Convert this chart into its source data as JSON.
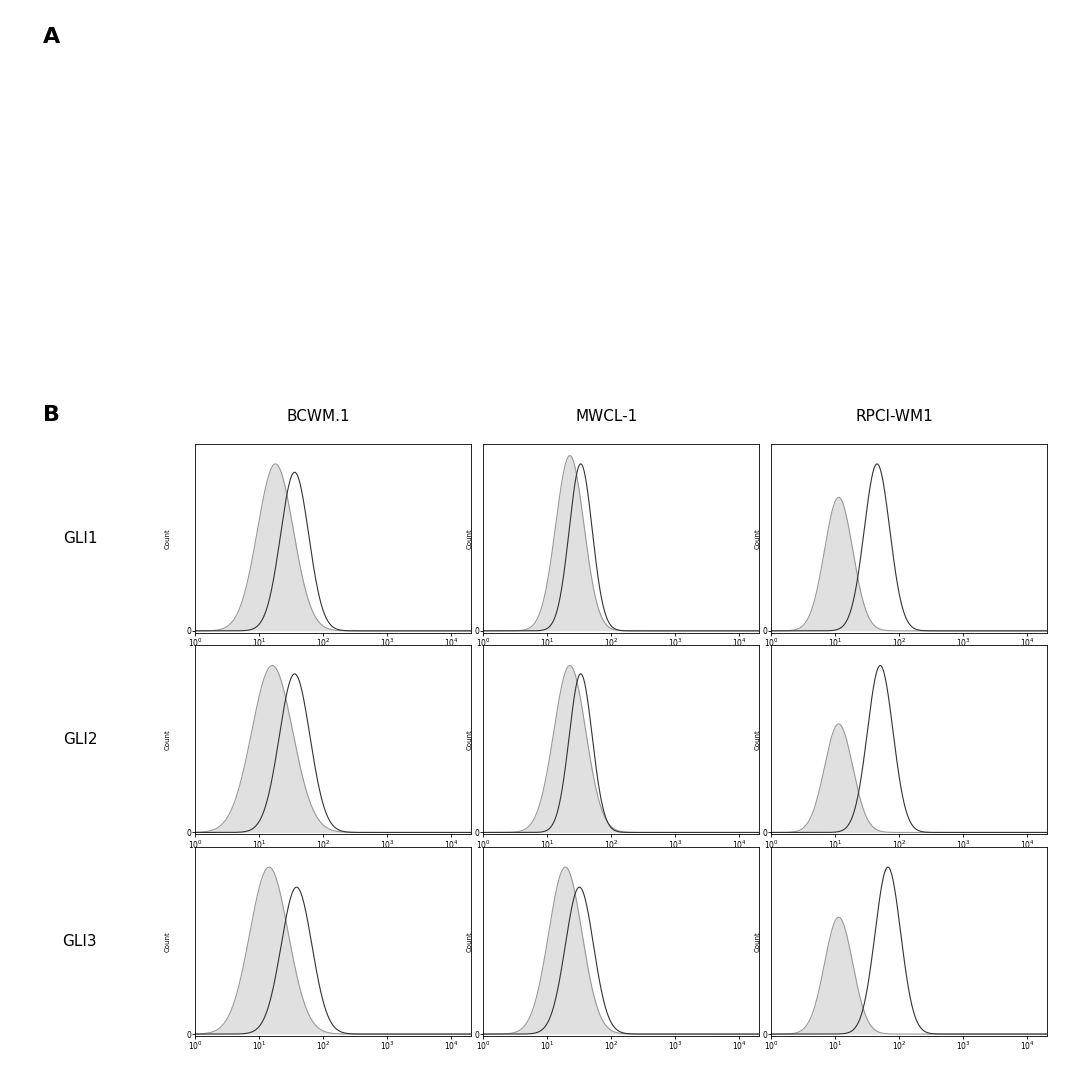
{
  "panel_label_A": "A",
  "panel_label_B": "B",
  "col_labels": [
    "BCWM.1",
    "MWCL-1",
    "RPCI-WM1"
  ],
  "row_labels": [
    "GLI1",
    "GLI2",
    "GLI3"
  ],
  "ylabel_text": "Count",
  "fill_color": "#cccccc",
  "isotype_line_color": "#999999",
  "antibody_line_color": "#333333",
  "line_width": 0.8,
  "plots": [
    {
      "row": 0,
      "col": 0,
      "iso_mu": 1.25,
      "iso_sigma": 0.28,
      "iso_scale": 1.0,
      "ab_mu": 1.55,
      "ab_sigma": 0.22,
      "ab_scale": 0.95
    },
    {
      "row": 0,
      "col": 1,
      "iso_mu": 1.35,
      "iso_sigma": 0.22,
      "iso_scale": 1.05,
      "ab_mu": 1.52,
      "ab_sigma": 0.18,
      "ab_scale": 1.0
    },
    {
      "row": 0,
      "col": 2,
      "iso_mu": 1.05,
      "iso_sigma": 0.22,
      "iso_scale": 0.8,
      "ab_mu": 1.65,
      "ab_sigma": 0.2,
      "ab_scale": 1.0
    },
    {
      "row": 1,
      "col": 0,
      "iso_mu": 1.2,
      "iso_sigma": 0.32,
      "iso_scale": 1.0,
      "ab_mu": 1.55,
      "ab_sigma": 0.24,
      "ab_scale": 0.95
    },
    {
      "row": 1,
      "col": 1,
      "iso_mu": 1.35,
      "iso_sigma": 0.25,
      "iso_scale": 1.0,
      "ab_mu": 1.52,
      "ab_sigma": 0.18,
      "ab_scale": 0.95
    },
    {
      "row": 1,
      "col": 2,
      "iso_mu": 1.05,
      "iso_sigma": 0.22,
      "iso_scale": 0.65,
      "ab_mu": 1.7,
      "ab_sigma": 0.2,
      "ab_scale": 1.0
    },
    {
      "row": 2,
      "col": 0,
      "iso_mu": 1.15,
      "iso_sigma": 0.3,
      "iso_scale": 1.0,
      "ab_mu": 1.58,
      "ab_sigma": 0.24,
      "ab_scale": 0.88
    },
    {
      "row": 2,
      "col": 1,
      "iso_mu": 1.28,
      "iso_sigma": 0.26,
      "iso_scale": 1.0,
      "ab_mu": 1.5,
      "ab_sigma": 0.22,
      "ab_scale": 0.88
    },
    {
      "row": 2,
      "col": 2,
      "iso_mu": 1.05,
      "iso_sigma": 0.22,
      "iso_scale": 0.7,
      "ab_mu": 1.82,
      "ab_sigma": 0.2,
      "ab_scale": 1.0
    }
  ]
}
